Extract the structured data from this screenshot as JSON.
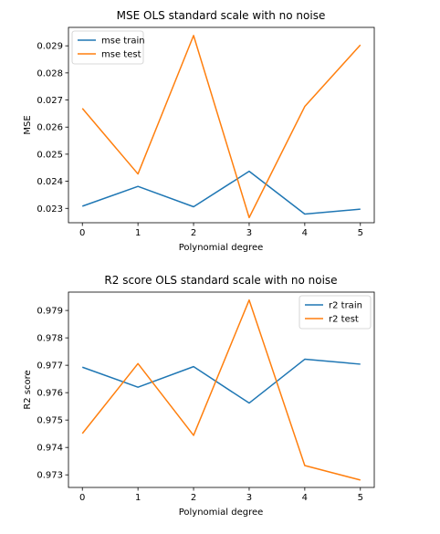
{
  "chart_data": [
    {
      "type": "line",
      "title": "MSE OLS standard scale with no noise",
      "xlabel": "Polynomial degree",
      "ylabel": "MSE",
      "x": [
        0,
        1,
        2,
        3,
        4,
        5
      ],
      "xticks": [
        0,
        1,
        2,
        3,
        4,
        5
      ],
      "xlim": [
        -0.25,
        5.25
      ],
      "ylim": [
        0.02247,
        0.02968
      ],
      "yticks": [
        0.023,
        0.024,
        0.025,
        0.026,
        0.027,
        0.028,
        0.029
      ],
      "ytick_labels": [
        "0.023",
        "0.024",
        "0.025",
        "0.026",
        "0.027",
        "0.028",
        "0.029"
      ],
      "grid": false,
      "legend": "top-left",
      "series": [
        {
          "name": "mse train",
          "color": "#1f77b4",
          "values": [
            0.02308,
            0.02381,
            0.02306,
            0.02437,
            0.02279,
            0.02297
          ]
        },
        {
          "name": "mse test",
          "color": "#ff7f0e",
          "values": [
            0.02669,
            0.02427,
            0.02938,
            0.02266,
            0.02676,
            0.02903
          ]
        }
      ]
    },
    {
      "type": "line",
      "title": "R2 score OLS standard scale with no noise",
      "xlabel": "Polynomial degree",
      "ylabel": "R2 score",
      "x": [
        0,
        1,
        2,
        3,
        4,
        5
      ],
      "xticks": [
        0,
        1,
        2,
        3,
        4,
        5
      ],
      "xlim": [
        -0.25,
        5.25
      ],
      "ylim": [
        0.97254,
        0.97967
      ],
      "yticks": [
        0.973,
        0.974,
        0.975,
        0.976,
        0.977,
        0.978,
        0.979
      ],
      "ytick_labels": [
        "0.973",
        "0.974",
        "0.975",
        "0.976",
        "0.977",
        "0.978",
        "0.979"
      ],
      "grid": false,
      "legend": "top-right",
      "series": [
        {
          "name": "r2 train",
          "color": "#1f77b4",
          "values": [
            0.97693,
            0.9762,
            0.97695,
            0.97562,
            0.97722,
            0.97704
          ]
        },
        {
          "name": "r2 test",
          "color": "#ff7f0e",
          "values": [
            0.97451,
            0.97706,
            0.97444,
            0.97938,
            0.97334,
            0.97281
          ]
        }
      ]
    }
  ]
}
